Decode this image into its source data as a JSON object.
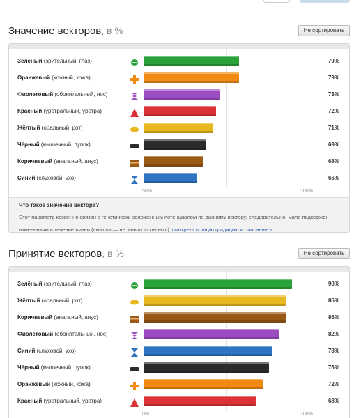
{
  "colors": {
    "green": "#2aa23a",
    "orange": "#f08a12",
    "violet": "#9b4cc0",
    "red": "#dc3236",
    "yellow": "#e8b820",
    "black": "#2b2b2b",
    "brown": "#9a5a16",
    "blue": "#2f74c0"
  },
  "sections": [
    {
      "title": "Значение векторов",
      "unit": ", в %",
      "sort_label": "Не сортировать",
      "axis_labels": [
        "50%",
        "100%"
      ],
      "axis_min": 50,
      "rows": [
        {
          "name": "Зелёный",
          "desc": " (зрительный, глаз)",
          "value": 79,
          "pct": "79%",
          "color": "green",
          "icon": "green-circle-icon"
        },
        {
          "name": "Оранжевый",
          "desc": " (кожный, кожа)",
          "value": 79,
          "pct": "79%",
          "color": "orange",
          "icon": "orange-cross-icon"
        },
        {
          "name": "Фиолетовый",
          "desc": " (обонятельный, нос)",
          "value": 73,
          "pct": "73%",
          "color": "violet",
          "icon": "violet-zigzag-icon"
        },
        {
          "name": "Красный",
          "desc": " (уретральный, уретра)",
          "value": 72,
          "pct": "72%",
          "color": "red",
          "icon": "red-triangle-icon"
        },
        {
          "name": "Жёлтый",
          "desc": " (оральный, рот)",
          "value": 71,
          "pct": "71%",
          "color": "yellow",
          "icon": "yellow-ellipse-icon"
        },
        {
          "name": "Чёрный",
          "desc": " (мышечный, пупок)",
          "value": 69,
          "pct": "69%",
          "color": "black",
          "icon": "black-bar-icon"
        },
        {
          "name": "Коричневый",
          "desc": " (анальный, анус)",
          "value": 68,
          "pct": "68%",
          "color": "brown",
          "icon": "brown-square-icon"
        },
        {
          "name": "Синий",
          "desc": " (слуховой, ухо)",
          "value": 66,
          "pct": "66%",
          "color": "blue",
          "icon": "blue-hourglass-icon"
        }
      ],
      "note": {
        "title": "Что такое значение вектора?",
        "body": "Этот параметр косвенно связан с генетически заложенным потенциалом по данному вектору, следовательно, мало подвержен изменениям в течение жизни («мало» — не значит «совсем»).",
        "link": "смотреть полную градацию и описание »"
      }
    },
    {
      "title": "Принятие векторов",
      "unit": ", в %",
      "sort_label": "Не сортировать",
      "axis_labels": [
        "0%",
        "100%"
      ],
      "axis_min": 0,
      "rows": [
        {
          "name": "Зелёный",
          "desc": " (зрительный, глаз)",
          "value": 90,
          "pct": "90%",
          "color": "green",
          "icon": "green-circle-icon"
        },
        {
          "name": "Жёлтый",
          "desc": " (оральный, рот)",
          "value": 86,
          "pct": "86%",
          "color": "yellow",
          "icon": "yellow-ellipse-icon"
        },
        {
          "name": "Коричневый",
          "desc": " (анальный, анус)",
          "value": 86,
          "pct": "86%",
          "color": "brown",
          "icon": "brown-square-icon"
        },
        {
          "name": "Фиолетовый",
          "desc": " (обонятельный, нос)",
          "value": 82,
          "pct": "82%",
          "color": "violet",
          "icon": "violet-zigzag-icon"
        },
        {
          "name": "Синий",
          "desc": " (слуховой, ухо)",
          "value": 78,
          "pct": "78%",
          "color": "blue",
          "icon": "blue-hourglass-icon"
        },
        {
          "name": "Чёрный",
          "desc": " (мышечный, пупок)",
          "value": 76,
          "pct": "76%",
          "color": "black",
          "icon": "black-bar-icon"
        },
        {
          "name": "Оранжевый",
          "desc": " (кожный, кожа)",
          "value": 72,
          "pct": "72%",
          "color": "orange",
          "icon": "orange-cross-icon"
        },
        {
          "name": "Красный",
          "desc": " (уретральный, уретра)",
          "value": 68,
          "pct": "68%",
          "color": "red",
          "icon": "red-triangle-icon"
        }
      ]
    }
  ]
}
